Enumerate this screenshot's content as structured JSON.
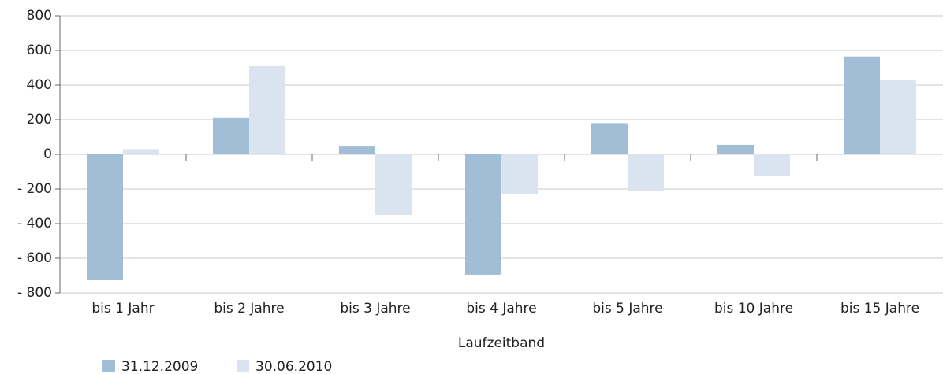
{
  "chart_data": {
    "type": "bar",
    "x_label": "Laufzeitband",
    "categories": [
      "bis 1 Jahr",
      "bis 2 Jahre",
      "bis 3 Jahre",
      "bis 4 Jahre",
      "bis 5 Jahre",
      "bis 10 Jahre",
      "bis 15 Jahre"
    ],
    "series": [
      {
        "name": "31.12.2009",
        "color": "#a2bdd6",
        "values": [
          -725,
          210,
          45,
          -695,
          180,
          55,
          565
        ]
      },
      {
        "name": "30.06.2010",
        "color": "#d9e4f0",
        "values": [
          30,
          510,
          -350,
          -230,
          -210,
          -125,
          430
        ]
      }
    ],
    "ylim": [
      -800,
      800
    ],
    "yticks": [
      {
        "value": -800,
        "label": "- 800"
      },
      {
        "value": -600,
        "label": "- 600"
      },
      {
        "value": -400,
        "label": "- 400"
      },
      {
        "value": -200,
        "label": "- 200"
      },
      0,
      200,
      400,
      600,
      800
    ],
    "grid": true,
    "legend": "bottom-left"
  }
}
